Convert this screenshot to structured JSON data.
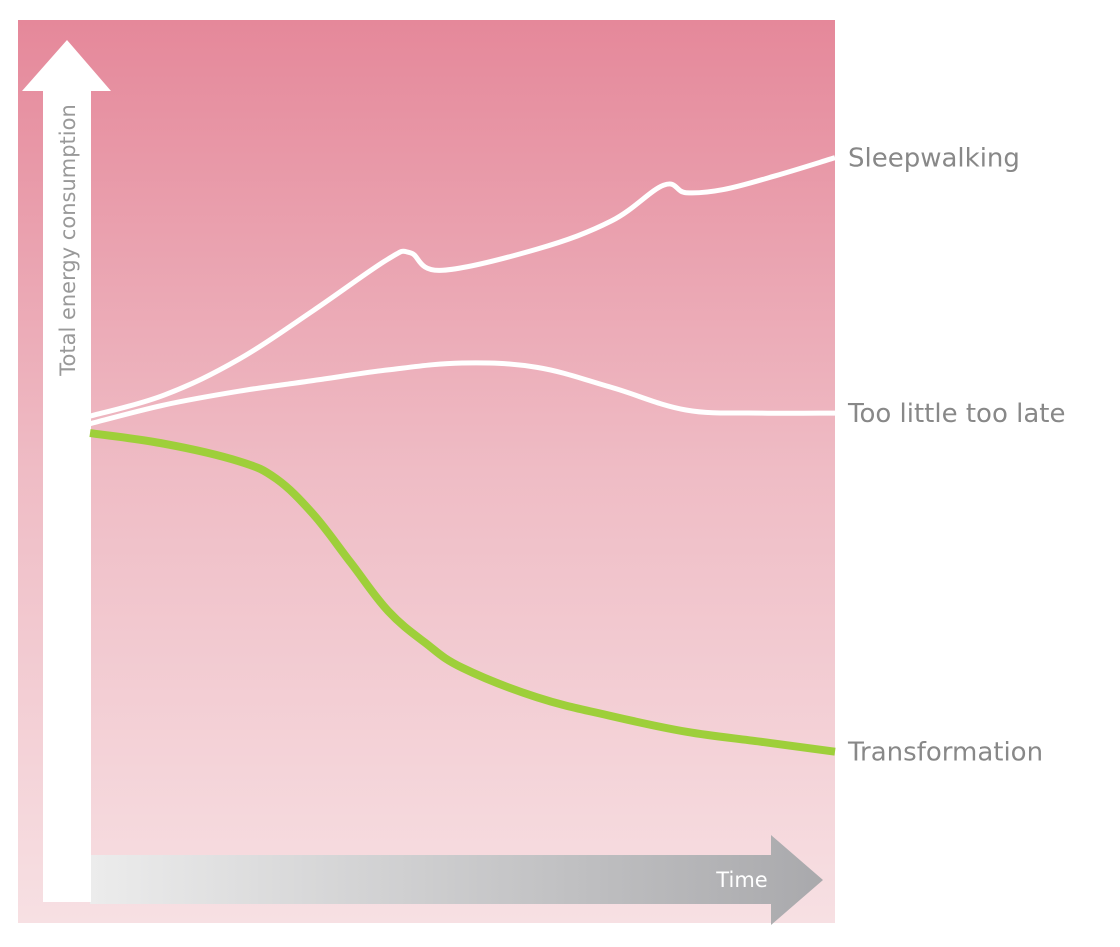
{
  "chart_data": {
    "type": "line",
    "xlabel": "Time",
    "ylabel": "Total energy consumption",
    "x_ticks": [],
    "y_ticks": [],
    "grid": false,
    "legend": "labels at right end of each line",
    "xlim": [
      0,
      1
    ],
    "ylim": [
      0,
      1
    ],
    "series": [
      {
        "name": "Sleepwalking",
        "color": "#ffffff",
        "points": [
          [
            0,
            0.538
          ],
          [
            0.1,
            0.572
          ],
          [
            0.2,
            0.629
          ],
          [
            0.3,
            0.707
          ],
          [
            0.4,
            0.789
          ],
          [
            0.43,
            0.799
          ],
          [
            0.47,
            0.771
          ],
          [
            0.6,
            0.805
          ],
          [
            0.7,
            0.85
          ],
          [
            0.77,
            0.907
          ],
          [
            0.8,
            0.895
          ],
          [
            0.85,
            0.9
          ],
          [
            0.92,
            0.922
          ],
          [
            1,
            0.951
          ]
        ]
      },
      {
        "name": "Too little too late",
        "color": "#ffffff",
        "points": [
          [
            0,
            0.526
          ],
          [
            0.1,
            0.556
          ],
          [
            0.2,
            0.578
          ],
          [
            0.3,
            0.595
          ],
          [
            0.4,
            0.612
          ],
          [
            0.5,
            0.623
          ],
          [
            0.6,
            0.616
          ],
          [
            0.7,
            0.584
          ],
          [
            0.8,
            0.548
          ],
          [
            0.9,
            0.543
          ],
          [
            1,
            0.543
          ]
        ]
      },
      {
        "name": "Transformation",
        "color": "#9ecf3a",
        "points": [
          [
            0,
            0.511
          ],
          [
            0.1,
            0.494
          ],
          [
            0.2,
            0.466
          ],
          [
            0.25,
            0.438
          ],
          [
            0.3,
            0.381
          ],
          [
            0.35,
            0.304
          ],
          [
            0.4,
            0.227
          ],
          [
            0.45,
            0.176
          ],
          [
            0.5,
            0.136
          ],
          [
            0.6,
            0.089
          ],
          [
            0.7,
            0.059
          ],
          [
            0.8,
            0.034
          ],
          [
            0.9,
            0.018
          ],
          [
            1,
            0.002
          ]
        ]
      }
    ],
    "colors": {
      "background_top": "#e5889a",
      "background_bottom": "#f7e0e3",
      "axis": "#ffffff",
      "time_arrow_start": "#ececec",
      "time_arrow_end": "#a9a9ac",
      "label_text": "#888888"
    }
  }
}
